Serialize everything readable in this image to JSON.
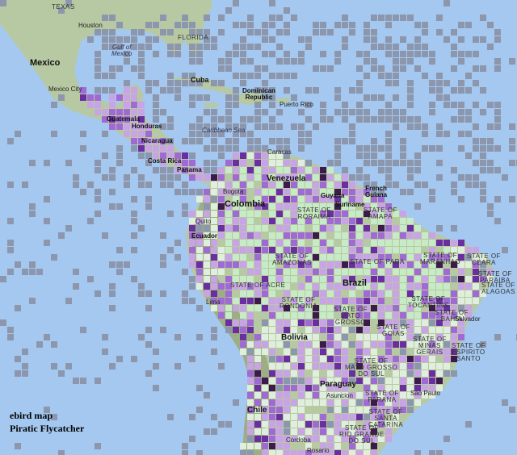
{
  "caption": {
    "line1": "ebird map",
    "line2": "Piratic Flycatcher"
  },
  "countries": {
    "mexico": "Mexico",
    "cuba": "Cuba",
    "dominican": "Dominican\nRepublic",
    "puerto_rico": "Puerto Rico",
    "guatemala": "Guatemala",
    "honduras": "Honduras",
    "nicaragua": "Nicaragua",
    "costa_rica": "Costa Rica",
    "panama": "Panama",
    "venezuela": "Venezuela",
    "colombia": "Colombia",
    "guyana": "Guyana",
    "suriname": "Suriname",
    "french_guiana": "French\nGuiana",
    "ecuador": "Ecuador",
    "brazil": "Brazil",
    "bolivia": "Bolivia",
    "paraguay": "Paraguay",
    "chile": "Chile"
  },
  "states": {
    "texas": "TEXAS",
    "florida": "FLORIDA",
    "roraima": "STATE OF\nRORAIMA",
    "amapa": "STATE OF\nAMAPA",
    "amazonas": "STATE OF\nAMAZONAS",
    "para": "STATE OF PARA",
    "maranhao": "STATE OF\nMARANHAO",
    "ceara": "STATE OF\nCEARA",
    "paraiba": "STATE OF\nPARAIBA",
    "acre": "STATE OF ACRE",
    "rondonia": "STATE OF\nRONDONIA",
    "tocantins": "STATE OF\nTOCANTINS",
    "mato_grosso": "STATE OF\nMATO\nGROSSO",
    "goias": "STATE OF\nGOIAS",
    "minas": "STATE OF\nMINAS\nGERAIS",
    "espirito": "STATE OF\nESPIRITO\nSANTO",
    "ms": "STATE OF\nMATO GROSSO\nDO SUL",
    "parana": "STATE OF\nPARANA",
    "sc": "STATE OF\nSANTA\nCATARINA",
    "rs": "STATE OF\nRIO GRANDE\nDO SUL",
    "bahia": "STATE OF\nBAHIA",
    "alagoas": "STATE OF\nALAGOAS"
  },
  "cities": {
    "houston": "Houston",
    "gulf": "Gulf of\nMexico",
    "mexico_city": "Mexico City",
    "caribbean": "Caribbean Sea",
    "caracas": "Caracas",
    "bogota": "Bogota",
    "quito": "Quito",
    "lima": "Lima",
    "salvador": "Salvador",
    "sao_paulo": "Sao Paulo",
    "asuncion": "Asuncion",
    "cordoba": "Cordoba",
    "rosario": "Rosario"
  },
  "colors": {
    "ocean": "#a4c8f0",
    "land": "#b7c9a2",
    "mountain": "#9eae84",
    "forest": "#c7ebc6",
    "grey_cell": "#8c97ad",
    "purple_light": "#c8a4e6",
    "purple_mid": "#a06ad4",
    "purple_dark": "#6a2ea2",
    "purple_darkest": "#3c1a4c",
    "pale_cell": "#e0efdd"
  }
}
